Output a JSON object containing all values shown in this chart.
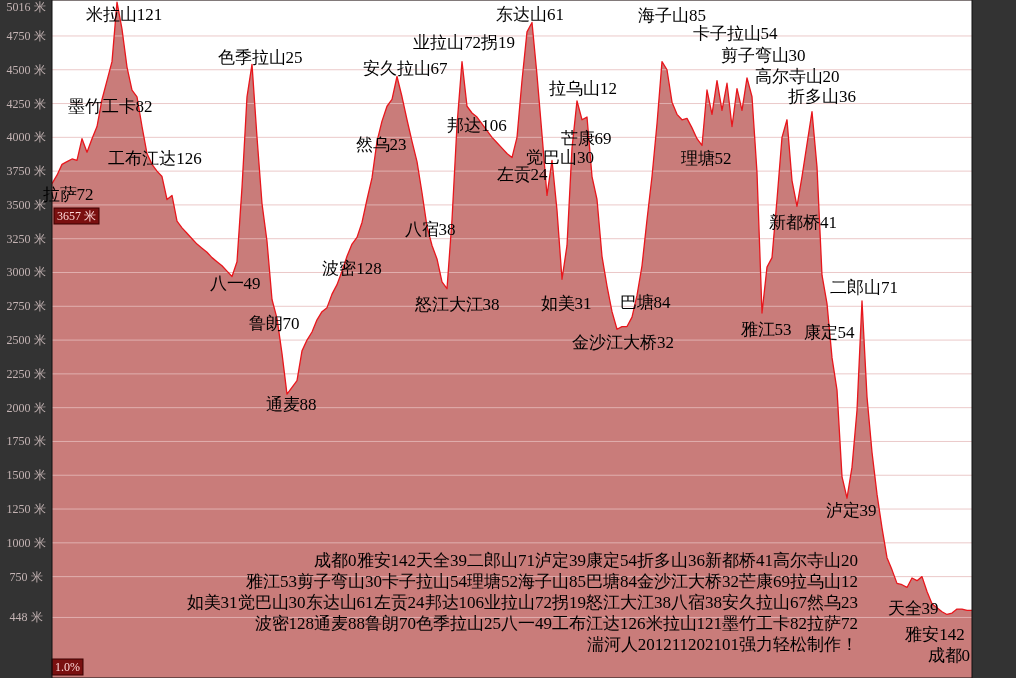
{
  "chart_data": {
    "type": "area",
    "categories": [
      null,
      null,
      null,
      null,
      null,
      null,
      null,
      null,
      null,
      null,
      null,
      null,
      null,
      null,
      null,
      null,
      null,
      null,
      null,
      null,
      null,
      null,
      null,
      null,
      null,
      null,
      null,
      null,
      null,
      null,
      null,
      null,
      null,
      null,
      null,
      null,
      null,
      null,
      null,
      null,
      null,
      null,
      null,
      null,
      null,
      null,
      null,
      null,
      null,
      null,
      null,
      null,
      null,
      null,
      null,
      null,
      null,
      null,
      null,
      null,
      null,
      null,
      null,
      null,
      null,
      null,
      null,
      null,
      null,
      null,
      null,
      null,
      null,
      null,
      null,
      null,
      null,
      null,
      null,
      null,
      null,
      null,
      null,
      null,
      null,
      null,
      null,
      null,
      null,
      null,
      null,
      null,
      null,
      null,
      null,
      null,
      null,
      null,
      null,
      null,
      null,
      null,
      null,
      null,
      null,
      null,
      null,
      null,
      null,
      null,
      null,
      null,
      null,
      null,
      null,
      null,
      null,
      null,
      null,
      null,
      null,
      null,
      null,
      null,
      null,
      null,
      null,
      null,
      null,
      null,
      null,
      null,
      null,
      null,
      null,
      null,
      null,
      null,
      null,
      null,
      null,
      null,
      null,
      null,
      null,
      null,
      null,
      null,
      null,
      null,
      null,
      null,
      null,
      null,
      null,
      null,
      null,
      null,
      null,
      null,
      null,
      null,
      null,
      null,
      null,
      null,
      null,
      null,
      null,
      null,
      null,
      null,
      null,
      null,
      null,
      null,
      null,
      null,
      null,
      null,
      null,
      null,
      null,
      null,
      null
    ],
    "series": [
      {
        "color": "#c97c7a",
        "values": [
          3657,
          3720,
          3800,
          3820,
          3840,
          3830,
          3990,
          3890,
          3990,
          4080,
          4280,
          4420,
          4560,
          5000,
          4800,
          4520,
          4350,
          4300,
          4080,
          3880,
          3800,
          3750,
          3710,
          3540,
          3570,
          3380,
          3330,
          3290,
          3250,
          3210,
          3180,
          3150,
          3110,
          3080,
          3050,
          3010,
          2970,
          3080,
          3630,
          4300,
          4540,
          4000,
          3510,
          3230,
          2800,
          2660,
          2400,
          2100,
          2150,
          2200,
          2420,
          2500,
          2560,
          2650,
          2710,
          2740,
          2840,
          2910,
          3010,
          3120,
          3210,
          3260,
          3370,
          3540,
          3700,
          3970,
          4120,
          4230,
          4280,
          4450,
          4300,
          4130,
          3970,
          3820,
          3590,
          3340,
          3200,
          3100,
          2930,
          2880,
          3390,
          4090,
          4560,
          4230,
          4180,
          4150,
          4100,
          4050,
          4000,
          3960,
          3920,
          3880,
          3850,
          4000,
          4420,
          4780,
          4850,
          4460,
          4020,
          3570,
          3830,
          3460,
          2950,
          3200,
          3920,
          4270,
          4130,
          4150,
          3710,
          3540,
          3120,
          2900,
          2710,
          2580,
          2600,
          2600,
          2670,
          2830,
          3050,
          3390,
          3710,
          4100,
          4560,
          4500,
          4260,
          4170,
          4130,
          4140,
          4070,
          3990,
          3940,
          4350,
          4170,
          4420,
          4200,
          4400,
          4080,
          4360,
          4200,
          4440,
          4300,
          3740,
          2700,
          3040,
          3110,
          3540,
          4000,
          4130,
          3680,
          3490,
          3710,
          3950,
          4190,
          3780,
          2980,
          2770,
          2370,
          2130,
          1490,
          1330,
          1560,
          1980,
          2790,
          2080,
          1670,
          1360,
          1110,
          890,
          800,
          700,
          690,
          670,
          740,
          720,
          750,
          640,
          550,
          520,
          490,
          470,
          480,
          510,
          510,
          500,
          500
        ]
      }
    ],
    "ylim": [
      0,
      5016
    ],
    "yticks": [
      {
        "value": 448,
        "label": "448 米"
      },
      {
        "value": 750,
        "label": "750 米"
      },
      {
        "value": 1000,
        "label": "1000 米"
      },
      {
        "value": 1250,
        "label": "1250 米"
      },
      {
        "value": 1500,
        "label": "1500 米"
      },
      {
        "value": 1750,
        "label": "1750 米"
      },
      {
        "value": 2000,
        "label": "2000 米"
      },
      {
        "value": 2250,
        "label": "2250 米"
      },
      {
        "value": 2500,
        "label": "2500 米"
      },
      {
        "value": 2750,
        "label": "2750 米"
      },
      {
        "value": 3000,
        "label": "3000 米"
      },
      {
        "value": 3250,
        "label": "3250 米"
      },
      {
        "value": 3500,
        "label": "3500 米"
      },
      {
        "value": 3750,
        "label": "3750 米"
      },
      {
        "value": 4000,
        "label": "4000 米"
      },
      {
        "value": 4250,
        "label": "4250 米"
      },
      {
        "value": 4500,
        "label": "4500 米"
      },
      {
        "value": 4750,
        "label": "4750 米"
      },
      {
        "value": 5016,
        "label": "5016 米"
      }
    ],
    "grid": "y",
    "annotations": [
      "3657 米",
      "拉萨72",
      "米拉山121",
      "墨竹工卡82",
      "工布江达126",
      "色季拉山25",
      "八一49",
      "鲁朗70",
      "通麦88",
      "波密128",
      "然乌23",
      "安久拉山67",
      "八宿38",
      "业拉山72拐19",
      "邦达106",
      "怒江大江38",
      "东达山61",
      "左贡24",
      "觉巴山30",
      "拉乌山12",
      "芒康69",
      "如美31",
      "金沙江大桥32",
      "巴塘84",
      "海子山85",
      "卡子拉山54",
      "理塘52",
      "剪子弯山30",
      "高尔寺山20",
      "折多山36",
      "新都桥41",
      "雅江53",
      "康定54",
      "二郎山71",
      "泸定39",
      "天全39",
      "雅安142",
      "成都0",
      "成都0雅安142天全39二郎山71泸定39康定54折多山36新都桥41高尔寺山20",
      "雅江53剪子弯山30卡子拉山54理塘52海子山85巴塘84金沙江大桥32芒康69拉乌山12",
      "如美31觉巴山30东达山61左贡24邦达106业拉山72拐19怒江大江38八宿38安久拉山67然乌23",
      "波密128通麦88鲁朗70色季拉山25八一49工布江达126米拉山121墨竹工卡82拉萨72",
      "湍河人201211202101强力轻松制作！",
      "1.0%"
    ]
  }
}
